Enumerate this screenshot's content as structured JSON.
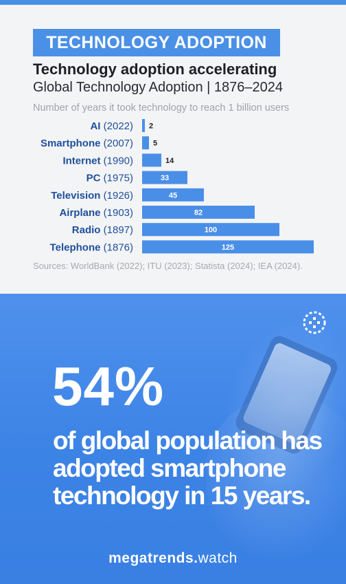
{
  "header": {
    "badge": "TECHNOLOGY ADOPTION",
    "title": "Technology adoption accelerating",
    "subtitle": "Global Technology  Adoption | 1876–2024",
    "note": "Number  of years it took technology  to reach  1 billion users"
  },
  "chart_data": {
    "type": "bar",
    "orientation": "horizontal",
    "categories": [
      "AI",
      "Smartphone",
      "Internet",
      "PC",
      "Television",
      "Airplane",
      "Radio",
      "Telephone"
    ],
    "years": [
      "(2022)",
      "(2007)",
      "(1990)",
      "(1975)",
      "(1926)",
      "(1903)",
      "(1897)",
      "(1876)"
    ],
    "values": [
      2,
      5,
      14,
      33,
      45,
      82,
      100,
      125
    ],
    "bar_color": "#4a8fe7",
    "label_color": "#1f4f9a",
    "grid": false,
    "legend": false
  },
  "source": "Sources: WorldBank (2022); ITU (2023); Statista (2024); IEA (2024).",
  "stat": {
    "value": "54%",
    "text": "of global population has adopted smartphone technology in 15 years."
  },
  "brand": {
    "bold": "megatrends.",
    "light": "watch"
  },
  "colors": {
    "accent": "#4a90e6",
    "bottom_bg": "#3d85e6"
  }
}
